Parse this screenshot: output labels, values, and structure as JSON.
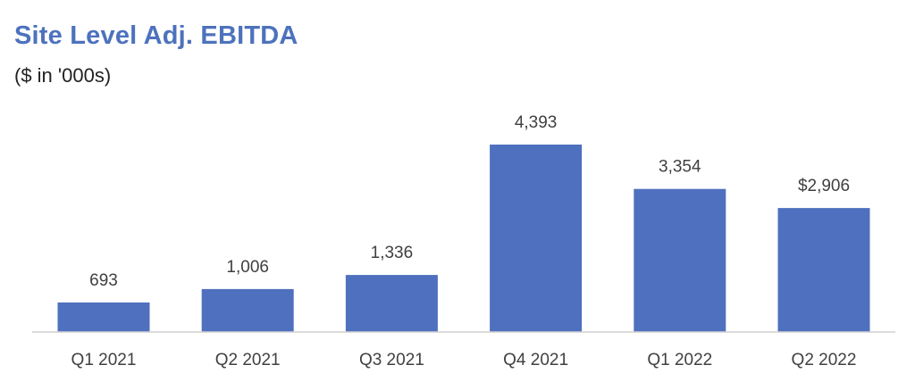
{
  "chart_data": {
    "type": "bar",
    "title": "Site Level Adj. EBITDA",
    "subtitle": "($ in '000s)",
    "categories": [
      "Q1 2021",
      "Q2 2021",
      "Q3 2021",
      "Q4 2021",
      "Q1 2022",
      "Q2 2022"
    ],
    "values": [
      693,
      1006,
      1336,
      4393,
      3354,
      2906
    ],
    "data_labels": [
      "693",
      "1,006",
      "1,336",
      "4,393",
      "3,354",
      "$2,906"
    ],
    "ylim": [
      0,
      4393
    ],
    "bar_color": "#4f70be",
    "grid": false,
    "legend": "none"
  }
}
